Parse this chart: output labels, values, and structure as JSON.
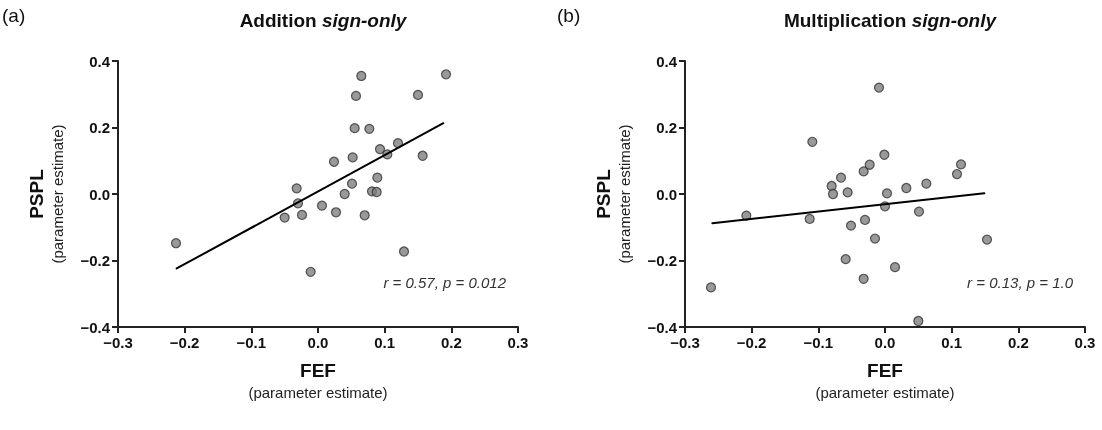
{
  "chart_data": [
    {
      "type": "scatter",
      "title": "Addition sign-only",
      "xlabel": "FEF\n(parameter estimate)",
      "ylabel": "PSPL\n(parameter estimate)",
      "annotations": [
        "(a)",
        "r = 0.57, p = 0.012"
      ],
      "xlim": [
        -0.3,
        0.3
      ],
      "ylim": [
        -0.4,
        0.4
      ],
      "grid": false,
      "xticks": [
        {
          "value": -0.3,
          "label": "−0.3"
        },
        {
          "value": -0.2,
          "label": "−0.2"
        },
        {
          "value": -0.1,
          "label": "−0.1"
        },
        {
          "value": 0,
          "label": "0.0"
        },
        {
          "value": 0.1,
          "label": "0.1"
        },
        {
          "value": 0.2,
          "label": "0.2"
        },
        {
          "value": 0.3,
          "label": "0.3"
        }
      ],
      "yticks": [
        {
          "value": -0.4,
          "label": "−0.4"
        },
        {
          "value": -0.2,
          "label": "−0.2"
        },
        {
          "value": 0,
          "label": "0.0"
        },
        {
          "value": 0.2,
          "label": "0.2"
        },
        {
          "value": 0.4,
          "label": "0.4"
        }
      ],
      "series": [
        {
          "marker": "circle",
          "color": "#808080",
          "x": [
            -0.213,
            -0.05,
            -0.032,
            -0.03,
            -0.024,
            -0.011,
            0.006,
            0.024,
            0.027,
            0.04,
            0.051,
            0.052,
            0.055,
            0.057,
            0.065,
            0.07,
            0.077,
            0.081,
            0.088,
            0.089,
            0.093,
            0.104,
            0.12,
            0.129,
            0.15,
            0.157,
            0.192
          ],
          "values": [
            -0.148,
            -0.071,
            0.017,
            -0.028,
            -0.063,
            -0.234,
            -0.035,
            0.097,
            -0.055,
            0.0,
            0.031,
            0.11,
            0.198,
            0.295,
            0.355,
            -0.064,
            0.196,
            0.008,
            0.006,
            0.049,
            0.135,
            0.119,
            0.153,
            -0.173,
            0.298,
            0.115,
            0.36
          ]
        },
        {
          "type": "line",
          "marker": "none",
          "color": "#000000",
          "x": [
            -0.212,
            0.188
          ],
          "values": [
            -0.224,
            0.213
          ]
        }
      ]
    },
    {
      "type": "scatter",
      "title": "Multiplication sign-only",
      "xlabel": "FEF\n(parameter estimate)",
      "ylabel": "PSPL\n(parameter estimate)",
      "annotations": [
        "(b)",
        "r = 0.13, p = 1.0"
      ],
      "xlim": [
        -0.3,
        0.3
      ],
      "ylim": [
        -0.4,
        0.4
      ],
      "grid": false,
      "xticks": [
        {
          "value": -0.3,
          "label": "−0.3"
        },
        {
          "value": -0.2,
          "label": "−0.2"
        },
        {
          "value": -0.1,
          "label": "−0.1"
        },
        {
          "value": 0,
          "label": "0.0"
        },
        {
          "value": 0.1,
          "label": "0.1"
        },
        {
          "value": 0.2,
          "label": "0.2"
        },
        {
          "value": 0.3,
          "label": "0.3"
        }
      ],
      "yticks": [
        {
          "value": -0.4,
          "label": "−0.4"
        },
        {
          "value": -0.2,
          "label": "−0.2"
        },
        {
          "value": 0,
          "label": "0.0"
        },
        {
          "value": 0.2,
          "label": "0.2"
        },
        {
          "value": 0.4,
          "label": "0.4"
        }
      ],
      "series": [
        {
          "marker": "circle",
          "color": "#808080",
          "x": [
            -0.261,
            -0.208,
            -0.113,
            -0.109,
            -0.08,
            -0.078,
            -0.066,
            -0.056,
            -0.059,
            -0.051,
            -0.032,
            -0.032,
            -0.03,
            -0.023,
            -0.015,
            -0.009,
            -0.001,
            0.0,
            0.003,
            0.015,
            0.032,
            0.051,
            0.05,
            0.062,
            0.108,
            0.114,
            0.153
          ],
          "values": [
            -0.281,
            -0.065,
            -0.075,
            0.157,
            0.024,
            0.0,
            0.049,
            0.005,
            -0.196,
            -0.095,
            -0.255,
            0.068,
            -0.078,
            0.088,
            -0.134,
            0.32,
            0.118,
            -0.037,
            0.002,
            -0.22,
            0.018,
            -0.053,
            -0.382,
            0.031,
            0.06,
            0.089,
            -0.137
          ]
        },
        {
          "type": "line",
          "marker": "none",
          "color": "#000000",
          "x": [
            -0.259,
            0.149
          ],
          "values": [
            -0.088,
            0.002
          ]
        }
      ]
    }
  ]
}
